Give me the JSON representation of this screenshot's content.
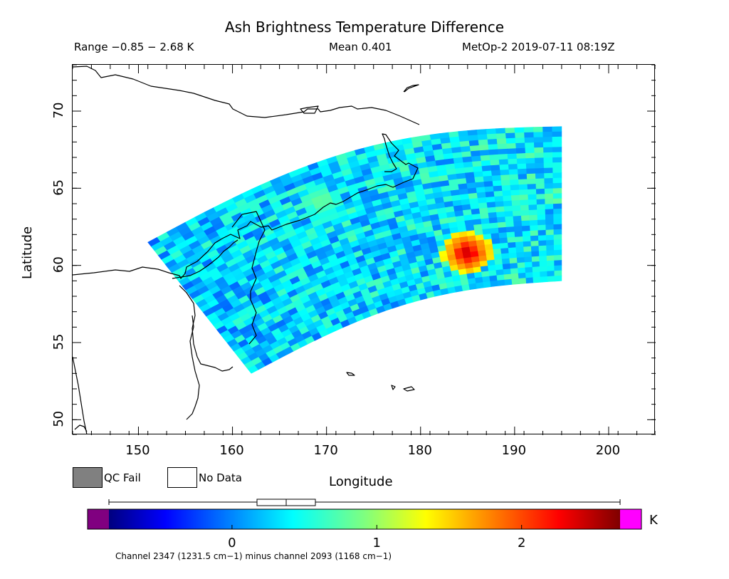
{
  "header": {
    "title": "Ash Brightness Temperature Difference",
    "range": "Range −0.85 − 2.68 K",
    "mean": "Mean 0.401",
    "satellite": "MetOp-2 2019-07-11 08:19Z"
  },
  "legend": {
    "qc_fail": "QC Fail",
    "no_data": "No Data",
    "qc_fail_color": "#808080",
    "no_data_color": "#ffffff"
  },
  "colorbar": {
    "unit": "K",
    "ticks": [
      "0",
      "1",
      "2"
    ],
    "under_color": "#800080",
    "over_color": "#ff00ff",
    "footnote": "Channel 2347 (1231.5 cm−1) minus channel 2093 (1168 cm−1)"
  },
  "chart_data": {
    "type": "heatmap",
    "title": "Ash Brightness Temperature Difference",
    "xlabel": "Longitude",
    "ylabel": "Latitude",
    "xlim": [
      143,
      205
    ],
    "ylim": [
      49,
      73
    ],
    "xticks": [
      "150",
      "160",
      "170",
      "180",
      "190",
      "200"
    ],
    "yticks": [
      "50",
      "55",
      "60",
      "65",
      "70"
    ],
    "value_range": [
      -0.85,
      2.68
    ],
    "mean": 0.401,
    "unit": "K",
    "colormap": "jet",
    "swath_corners": [
      [
        151,
        61.5
      ],
      [
        195,
        69
      ],
      [
        195,
        59
      ],
      [
        162,
        53
      ]
    ],
    "hotspot": {
      "lon": 185,
      "lat": 60.8,
      "value": 2.5
    },
    "secondary_anomaly": {
      "lon": 169.5,
      "lat": 64.2,
      "value": 0.9
    }
  }
}
